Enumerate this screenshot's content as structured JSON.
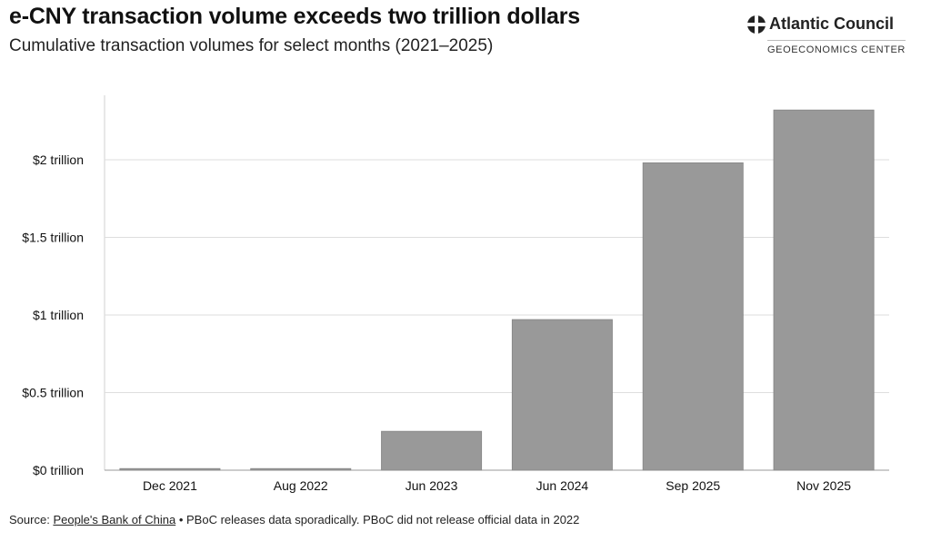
{
  "header": {
    "title": "e-CNY transaction volume exceeds two trillion dollars",
    "subtitle": "Cumulative transaction volumes for select months (2021–2025)"
  },
  "logo": {
    "name": "Atlantic Council",
    "subtitle": "GEOECONOMICS CENTER",
    "icon": "globe-icon"
  },
  "footer": {
    "source_label": "Source:",
    "source_link": "People's Bank of China",
    "separator": "•",
    "note": "PBoC releases data sporadically. PBoC did not release official data in 2022"
  },
  "chart_data": {
    "type": "bar",
    "categories": [
      "Dec 2021",
      "Aug 2022",
      "Jun 2023",
      "Jun 2024",
      "Sep 2025",
      "Nov 2025"
    ],
    "values": [
      0.01,
      0.01,
      0.25,
      0.97,
      1.98,
      2.32
    ],
    "unit": "trillion USD",
    "title": "e-CNY transaction volume exceeds two trillion dollars",
    "subtitle": "Cumulative transaction volumes for select months (2021–2025)",
    "xlabel": "",
    "ylabel": "",
    "ylim": [
      0,
      2.4
    ],
    "yticks": [
      0,
      0.5,
      1,
      1.5,
      2
    ],
    "ytick_labels": [
      "$0 trillion",
      "$0.5 trillion",
      "$1 trillion",
      "$1.5 trillion",
      "$2 trillion"
    ],
    "grid": true,
    "bar_color": "#999999"
  }
}
